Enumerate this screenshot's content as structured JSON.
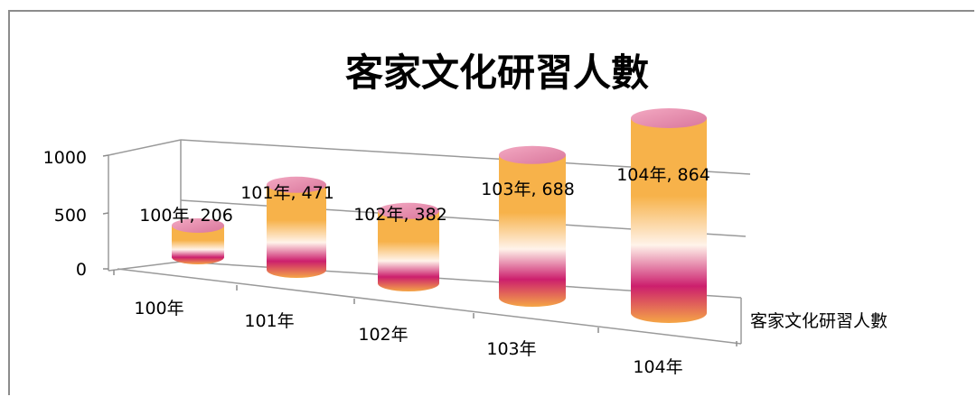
{
  "chart_data": {
    "type": "bar",
    "bar_shape": "3d-cylinder",
    "title": "客家文化研習人數",
    "categories": [
      "100年",
      "101年",
      "102年",
      "103年",
      "104年"
    ],
    "series": [
      {
        "name": "客家文化研習人數",
        "values": [
          206,
          471,
          382,
          688,
          864
        ]
      }
    ],
    "data_labels": [
      "100年, 206",
      "101年, 471",
      "102年, 382",
      "103年, 688",
      "104年, 864"
    ],
    "y_ticks": [
      "0",
      "500",
      "1000"
    ],
    "ylim": [
      0,
      1000
    ],
    "grid": true,
    "legend": "none",
    "colors": {
      "bar_top": "#e48aa8",
      "bar_upper": "#f7b24a",
      "bar_middle": "#fff3ea",
      "bar_lower": "#cc1f6d",
      "bar_bottom": "#f5a646",
      "axis": "#8c8c8c",
      "frame": "#8c8c8c"
    }
  }
}
